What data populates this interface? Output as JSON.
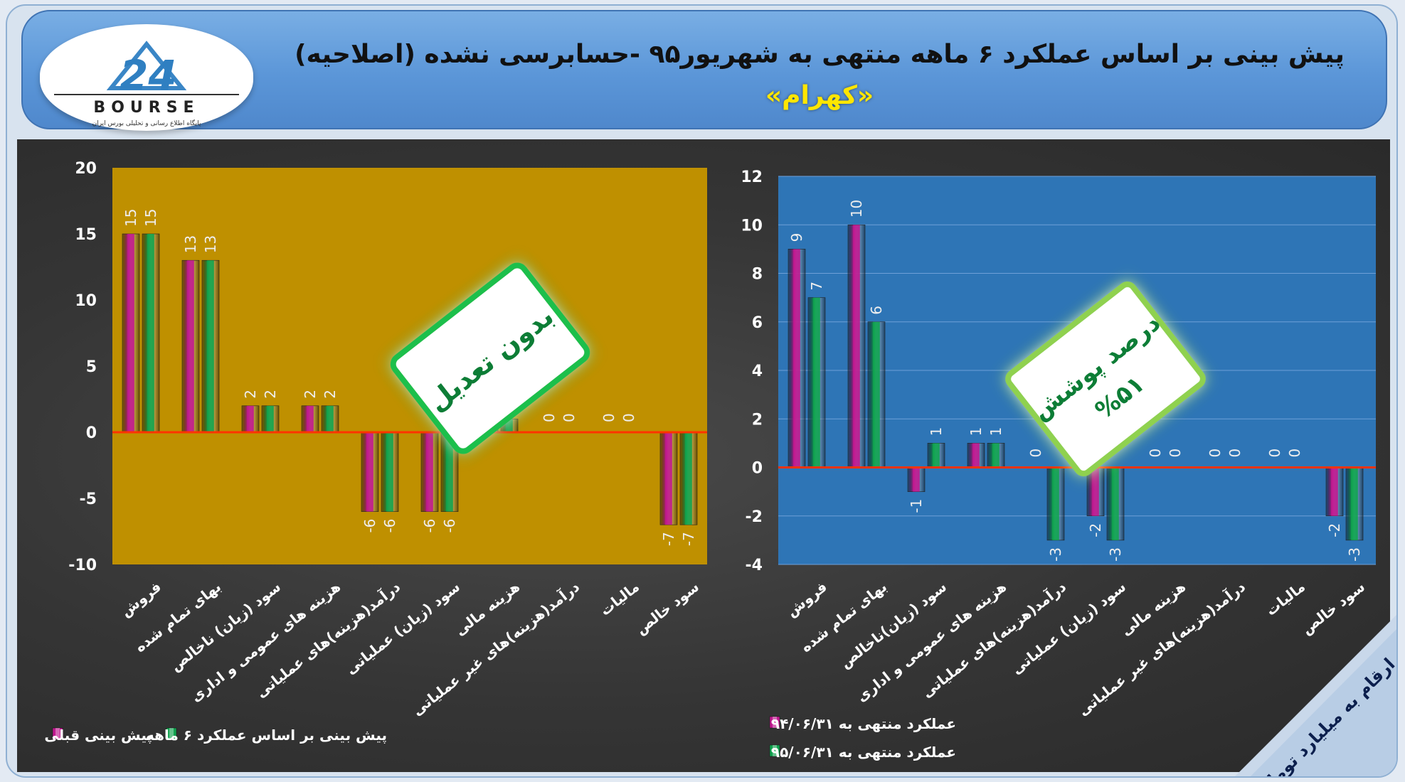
{
  "header": {
    "title": "پیش بینی بر اساس عملکرد ۶ ماهه منتهی به شهریور۹۵ -حسابرسی نشده (اصلاحیه)",
    "subtitle": "«کهرام»",
    "logo_text": "BOURSE",
    "logo_tagline": "پایگاه اطلاع رسانی و تحلیلی بورس ایران"
  },
  "colors": {
    "magenta": "#c0188f",
    "green": "#11a34f",
    "left_plot_bg": "#bf9000",
    "right_plot_bg": "#2e75b6",
    "zero_line": "#ff3300"
  },
  "left_badge": "بدون تعدیل",
  "right_badge": {
    "line1": "درصد پوشش",
    "line2": "%۵۱"
  },
  "units_note": "ارقام به میلیارد تومان",
  "chart_data": [
    {
      "type": "bar",
      "categories": [
        "فروش",
        "بهای تمام شده",
        "سود (زیان) ناخالص",
        "هزینه های عمومی و اداری",
        "درآمد(هزینه)های عملیاتی",
        "سود (زیان) عملیاتی",
        "هزینه مالی",
        "درآمد(هزینه)های غیر عملیاتی",
        "مالیات",
        "سود خالص"
      ],
      "series": [
        {
          "name": "پیش بینی قبلی",
          "color": "#c0188f",
          "values": [
            15,
            13,
            2,
            2,
            -6,
            -6,
            1,
            0,
            0,
            -7
          ]
        },
        {
          "name": "پیش بینی بر اساس عملکرد ۶ ماهه",
          "color": "#11a34f",
          "values": [
            15,
            13,
            2,
            2,
            -6,
            -6,
            1,
            0,
            0,
            -7
          ]
        }
      ],
      "ylim": [
        -10,
        20
      ],
      "yticks": [
        20,
        15,
        10,
        5,
        0,
        -5,
        -10
      ],
      "grid": false,
      "legend": "bottom"
    },
    {
      "type": "bar",
      "categories": [
        "فروش",
        "بهای تمام شده",
        "سود (زیان)ناخالص",
        "هزینه های عمومی و اداری",
        "درآمد(هزینه)های عملیاتی",
        "سود (زیان) عملیاتی",
        "هزینه مالی",
        "درآمد(هزینه)های غیر عملیاتی",
        "مالیات",
        "سود خالص"
      ],
      "series": [
        {
          "name": "عملکرد منتهی به ۹۴/۰۶/۳۱",
          "color": "#c0188f",
          "values": [
            9,
            10,
            -1,
            1,
            0,
            -2,
            0,
            0,
            0,
            -2
          ]
        },
        {
          "name": "عملکرد منتهی به ۹۵/۰۶/۳۱",
          "color": "#11a34f",
          "values": [
            7,
            6,
            1,
            1,
            -3,
            -3,
            0,
            0,
            0,
            -3
          ]
        }
      ],
      "ylim": [
        -4,
        12
      ],
      "yticks": [
        12,
        10,
        8,
        6,
        4,
        2,
        0,
        -2,
        -4
      ],
      "grid": true,
      "legend": "bottom"
    }
  ]
}
